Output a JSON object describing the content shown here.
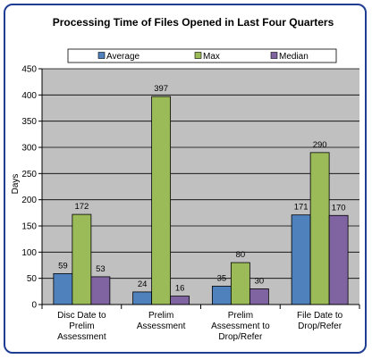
{
  "chart_data": {
    "type": "bar",
    "title": "Processing Time of Files Opened in Last Four Quarters",
    "ylabel": "Days",
    "xlabel": "",
    "ylim": [
      0,
      450
    ],
    "yticks": [
      0,
      50,
      100,
      150,
      200,
      250,
      300,
      350,
      400,
      450
    ],
    "grid": true,
    "legend_position": "top",
    "categories": [
      [
        "Disc Date to",
        "Prelim",
        "Assessment"
      ],
      [
        "Prelim",
        "Assessment"
      ],
      [
        "Prelim",
        "Assessment to",
        "Drop/Refer"
      ],
      [
        "File Date to",
        "Drop/Refer"
      ]
    ],
    "series": [
      {
        "name": "Average",
        "values": [
          59,
          24,
          35,
          171
        ],
        "color": "#4f81bd"
      },
      {
        "name": "Max",
        "values": [
          172,
          397,
          80,
          290
        ],
        "color": "#9bbb59"
      },
      {
        "name": "Median",
        "values": [
          53,
          16,
          30,
          170
        ],
        "color": "#8064a2"
      }
    ],
    "plot_background": "#c0c0c0",
    "frame_color": "#1f3d93"
  }
}
